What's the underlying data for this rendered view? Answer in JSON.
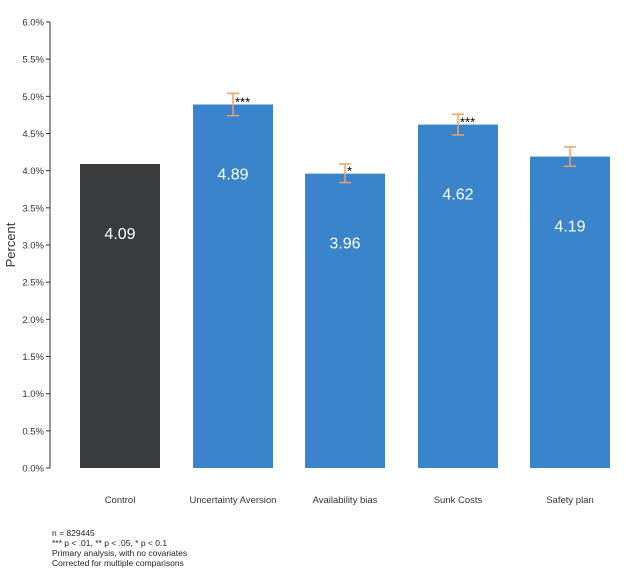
{
  "chart_data": {
    "type": "bar",
    "ylabel": "Percent",
    "xlabel": "",
    "ylim": [
      0,
      6.0
    ],
    "yticks": [
      0,
      0.5,
      1.0,
      1.5,
      2.0,
      2.5,
      3.0,
      3.5,
      4.0,
      4.5,
      5.0,
      5.5,
      6.0
    ],
    "ytick_labels": [
      "0.0%",
      "0.5%",
      "1.0%",
      "1.5%",
      "2.0%",
      "2.5%",
      "3.0%",
      "3.5%",
      "4.0%",
      "4.5%",
      "5.0%",
      "5.5%",
      "6.0%"
    ],
    "grid": false,
    "bars": [
      {
        "category": "Control",
        "value": 4.09,
        "label": "4.09",
        "color": "#3a3b3d",
        "error": null,
        "sig": ""
      },
      {
        "category": "Uncertainty Aversion",
        "value": 4.89,
        "label": "4.89",
        "color": "#3a84cc",
        "error": [
          4.74,
          5.04
        ],
        "sig": "***"
      },
      {
        "category": "Availability bias",
        "value": 3.96,
        "label": "3.96",
        "color": "#3a84cc",
        "error": [
          3.84,
          4.09
        ],
        "sig": "*"
      },
      {
        "category": "Sunk Costs",
        "value": 4.62,
        "label": "4.62",
        "color": "#3a84cc",
        "error": [
          4.48,
          4.76
        ],
        "sig": "***"
      },
      {
        "category": "Safety plan",
        "value": 4.19,
        "label": "4.19",
        "color": "#3a84cc",
        "error": [
          4.06,
          4.32
        ],
        "sig": ""
      }
    ],
    "error_bar_color": "#f0a060"
  },
  "notes": [
    "n = 829445",
    "*** p < .01, ** p < .05, * p < 0.1",
    "Primary analysis, with no covariates",
    "Corrected for multiple comparisons"
  ]
}
